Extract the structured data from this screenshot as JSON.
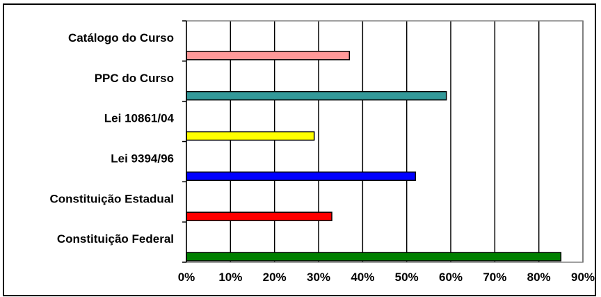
{
  "chart_data": {
    "type": "bar",
    "orientation": "horizontal",
    "categories": [
      "Catálogo do Curso",
      "PPC do Curso",
      "Lei 10861/04",
      "Lei 9394/96",
      "Constituição Estadual",
      "Constituição Federal"
    ],
    "values": [
      37,
      59,
      29,
      52,
      33,
      85
    ],
    "colors": [
      "#ff9999",
      "#339999",
      "#ffff00",
      "#0000ff",
      "#ff0000",
      "#008000"
    ],
    "title": "",
    "xlabel": "",
    "ylabel": "",
    "xlim": [
      0,
      90
    ],
    "x_ticks": [
      "0%",
      "10%",
      "20%",
      "30%",
      "40%",
      "50%",
      "60%",
      "70%",
      "80%",
      "90%"
    ],
    "grid": "vertical",
    "legend": "none"
  }
}
